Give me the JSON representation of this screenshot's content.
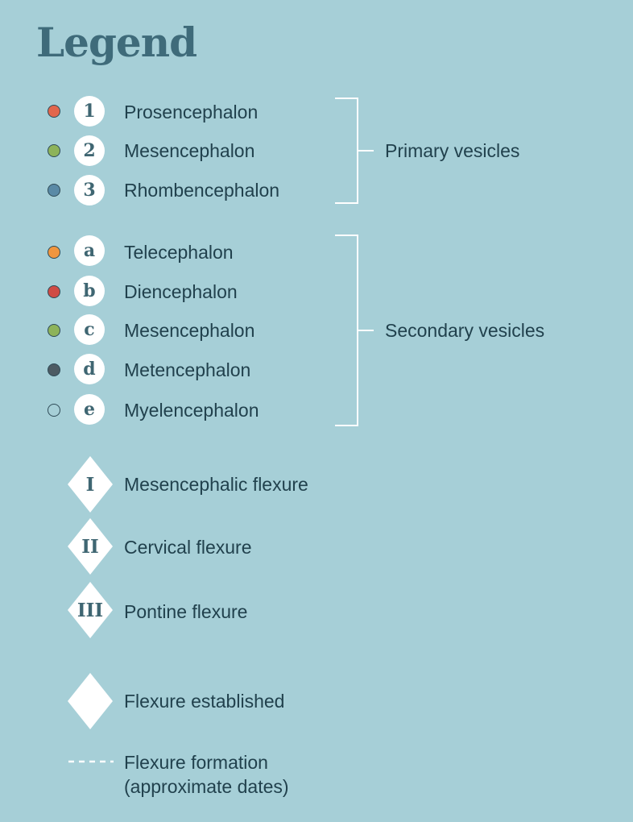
{
  "title": "Legend",
  "primary": {
    "group_label": "Primary vesicles",
    "items": [
      {
        "marker": "1",
        "label": "Prosencephalon",
        "color": "#e2664c"
      },
      {
        "marker": "2",
        "label": "Mesencephalon",
        "color": "#8db35a"
      },
      {
        "marker": "3",
        "label": "Rhombencephalon",
        "color": "#5a8aa6"
      }
    ]
  },
  "secondary": {
    "group_label": "Secondary vesicles",
    "items": [
      {
        "marker": "a",
        "label": "Telecephalon",
        "color": "#f0963f"
      },
      {
        "marker": "b",
        "label": "Diencephalon",
        "color": "#cf4b45"
      },
      {
        "marker": "c",
        "label": "Mesencephalon",
        "color": "#8db35a"
      },
      {
        "marker": "d",
        "label": "Metencephalon",
        "color": "#4d5b63"
      },
      {
        "marker": "e",
        "label": "Myelencephalon",
        "color": "#a6cfd7"
      }
    ]
  },
  "flexures": [
    {
      "marker": "I",
      "label": "Mesencephalic flexure"
    },
    {
      "marker": "II",
      "label": "Cervical flexure"
    },
    {
      "marker": "III",
      "label": "Pontine flexure"
    }
  ],
  "established": {
    "label": "Flexure established"
  },
  "formation": {
    "line1": "Flexure formation",
    "line2": "(approximate dates)"
  }
}
